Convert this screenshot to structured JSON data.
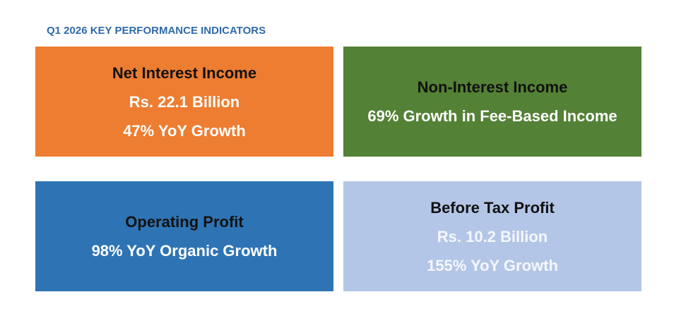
{
  "title": "Q1 2026 KEY PERFORMANCE INDICATORS",
  "colors": {
    "title": "#2e6aa8",
    "net_interest_income": "#ed7d31",
    "non_interest_income": "#538135",
    "operating_profit": "#2e74b5",
    "before_tax_profit": "#b4c6e7"
  },
  "cards": [
    {
      "heading": "Net Interest Income",
      "lines": [
        "Rs. 22.1 Billion",
        "47% YoY Growth"
      ]
    },
    {
      "heading": "Non-Interest Income",
      "lines": [
        "69% Growth in Fee-Based Income"
      ]
    },
    {
      "heading": "Operating Profit",
      "lines": [
        "98% YoY Organic Growth"
      ]
    },
    {
      "heading": "Before Tax Profit",
      "lines": [
        "Rs. 10.2 Billion",
        "155% YoY Growth"
      ]
    }
  ]
}
